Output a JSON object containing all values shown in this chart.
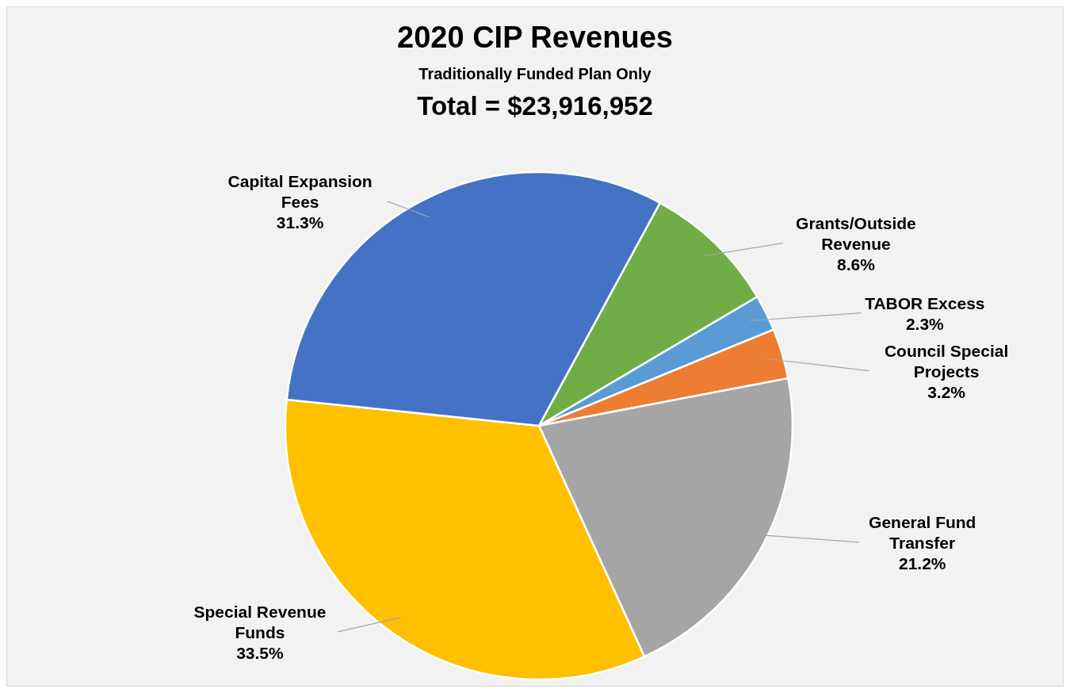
{
  "chart_data": {
    "type": "pie",
    "title": "2020 CIP Revenues",
    "subtitle": "Traditionally Funded Plan Only",
    "annotations": [
      "Total = $23,916,952"
    ],
    "categories": [
      "Grants/Outside Revenue",
      "TABOR Excess",
      "Council Special Projects",
      "General Fund Transfer",
      "Special Revenue Funds",
      "Capital Expansion Fees"
    ],
    "values": [
      8.6,
      2.3,
      3.2,
      21.2,
      33.5,
      31.3
    ],
    "value_labels": [
      "8.6%",
      "2.3%",
      "3.2%",
      "21.2%",
      "33.5%",
      "31.3%"
    ],
    "colors": [
      "#70ad47",
      "#5b9bd5",
      "#ed7d31",
      "#a5a5a5",
      "#ffc000",
      "#4472c4"
    ]
  }
}
